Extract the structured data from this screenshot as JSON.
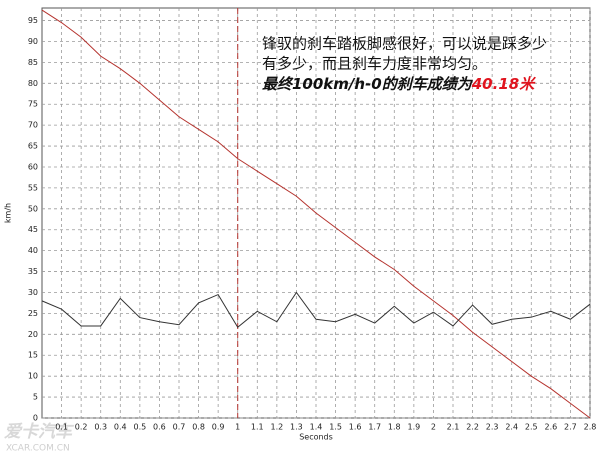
{
  "chart_data": {
    "type": "line",
    "x_label": "Seconds",
    "y_label": "km/h",
    "x": [
      0,
      0.1,
      0.2,
      0.3,
      0.4,
      0.5,
      0.6,
      0.7,
      0.8,
      0.9,
      1,
      1.1,
      1.2,
      1.3,
      1.4,
      1.5,
      1.6,
      1.7,
      1.8,
      1.9,
      2,
      2.1,
      2.2,
      2.3,
      2.4,
      2.5,
      2.6,
      2.7,
      2.8
    ],
    "series": [
      {
        "color": "#b5332e",
        "values": [
          97.5,
          94.5,
          91,
          86.5,
          83.5,
          80,
          76,
          72,
          69,
          66,
          62,
          59,
          56,
          53,
          49,
          45.5,
          42,
          38.5,
          35.5,
          31.5,
          28,
          24.5,
          20.5,
          17,
          13.5,
          10,
          7,
          3.5,
          0
        ]
      },
      {
        "color": "#333333",
        "values": [
          28,
          26,
          22,
          22,
          28.6,
          24,
          23,
          22.3,
          27.5,
          29.5,
          21.7,
          25.5,
          23,
          30,
          23.6,
          23,
          24.8,
          22.7,
          26.7,
          22.7,
          25.3,
          22,
          27,
          22.4,
          23.6,
          24.1,
          25.5,
          23.6,
          27.2
        ]
      }
    ],
    "xlim": [
      0,
      2.8
    ],
    "ylim": [
      0,
      98
    ],
    "xticks": [
      0.1,
      0.2,
      0.3,
      0.4,
      0.5,
      0.6,
      0.7,
      0.8,
      0.9,
      1,
      1.1,
      1.2,
      1.3,
      1.4,
      1.5,
      1.6,
      1.7,
      1.8,
      1.9,
      2,
      2.1,
      2.2,
      2.3,
      2.4,
      2.5,
      2.6,
      2.7,
      2.8
    ],
    "yticks": [
      0,
      5,
      10,
      15,
      20,
      25,
      30,
      35,
      40,
      45,
      50,
      55,
      60,
      65,
      70,
      75,
      80,
      85,
      90,
      95
    ],
    "grid": true,
    "cursor_x": 1,
    "cursor_color": "#b5332e",
    "annotation": {
      "lines": [
        "锋驭的刹车踏板脚感很好，可以说是踩多少",
        "有多少，而且刹车力度非常均匀。"
      ],
      "result_prefix": "最终100km/h-0的刹车成绩为",
      "result_value": "40.18米"
    },
    "watermark": {
      "logo": "爱卡汽车",
      "url": "XCAR.COM.CN"
    }
  }
}
